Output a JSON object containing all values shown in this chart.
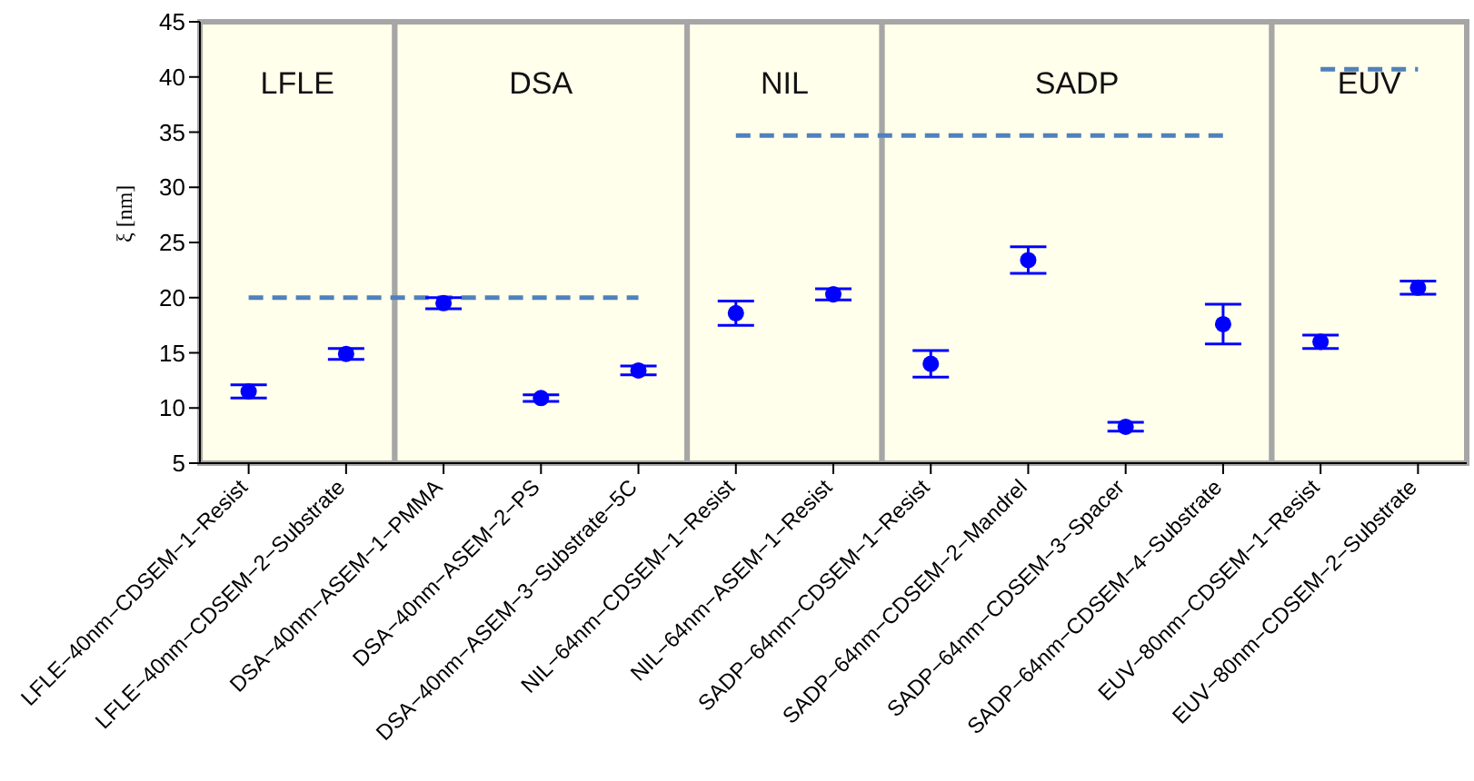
{
  "chart_data": {
    "type": "scatter",
    "ylabel": "ξ [nm]",
    "categories": [
      "LFLE−40nm−CDSEM−1−Resist",
      "LFLE−40nm−CDSEM−2−Substrate",
      "DSA−40nm−ASEM−1−PMMA",
      "DSA−40nm−ASEM−2−PS",
      "DSA−40nm−ASEM−3−Substrate−5C",
      "NIL−64nm−CDSEM−1−Resist",
      "NIL−64nm−ASEM−1−Resist",
      "SADP−64nm−CDSEM−1−Resist",
      "SADP−64nm−CDSEM−2−Mandrel",
      "SADP−64nm−CDSEM−3−Spacer",
      "SADP−64nm−CDSEM−4−Substrate",
      "EUV−80nm−CDSEM−1−Resist",
      "EUV−80nm−CDSEM−2−Substrate"
    ],
    "series": [
      {
        "color": "#0000ff",
        "marker": "circle",
        "values": [
          11.5,
          14.9,
          19.5,
          10.9,
          13.4,
          18.6,
          20.3,
          14.0,
          23.4,
          8.3,
          17.6,
          16.0,
          20.9
        ],
        "errors": [
          0.6,
          0.5,
          0.5,
          0.3,
          0.4,
          1.1,
          0.5,
          1.2,
          1.2,
          0.4,
          1.8,
          0.6,
          0.6
        ]
      },
      {
        "type": "line",
        "color": "#4f81bd",
        "line_style": "dashed",
        "values": [
          20,
          20,
          20,
          20,
          20,
          null,
          null,
          null,
          null,
          null,
          null,
          null,
          null
        ]
      },
      {
        "type": "line",
        "color": "#4f81bd",
        "line_style": "dashed",
        "values": [
          null,
          null,
          null,
          null,
          null,
          34.7,
          34.7,
          34.7,
          34.7,
          34.7,
          34.7,
          null,
          null
        ]
      },
      {
        "type": "line",
        "color": "#4f81bd",
        "line_style": "dashed",
        "values": [
          null,
          null,
          null,
          null,
          null,
          null,
          null,
          null,
          null,
          null,
          null,
          40.7,
          40.7
        ]
      }
    ],
    "bands": [
      {
        "axis": "x",
        "from": "LFLE−40nm−CDSEM−1−Resist",
        "to": "LFLE−40nm−CDSEM−2−Substrate",
        "label": "LFLE",
        "color": "#ffffeb"
      },
      {
        "axis": "x",
        "from": "DSA−40nm−ASEM−1−PMMA",
        "to": "DSA−40nm−ASEM−3−Substrate−5C",
        "label": "DSA",
        "color": "#ffffeb"
      },
      {
        "axis": "x",
        "from": "NIL−64nm−CDSEM−1−Resist",
        "to": "NIL−64nm−ASEM−1−Resist",
        "label": "NIL",
        "color": "#ffffeb"
      },
      {
        "axis": "x",
        "from": "SADP−64nm−CDSEM−1−Resist",
        "to": "SADP−64nm−CDSEM−4−Substrate",
        "label": "SADP",
        "color": "#ffffeb"
      },
      {
        "axis": "x",
        "from": "EUV−80nm−CDSEM−1−Resist",
        "to": "EUV−80nm−CDSEM−2−Substrate",
        "label": "EUV",
        "color": "#ffffeb"
      }
    ],
    "ylim": [
      5,
      45
    ],
    "yticks": [
      5,
      10,
      15,
      20,
      25,
      30,
      35,
      40,
      45
    ],
    "legend": false
  }
}
